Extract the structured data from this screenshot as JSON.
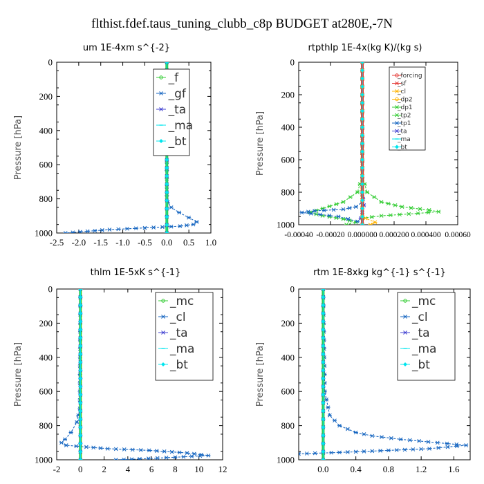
{
  "title": "flthist.fdef.taus_tuning_clubb_c8p  BUDGET at280E,-7N",
  "colors": {
    "green": "#33cc33",
    "blue": "#1565c0",
    "cyan": "#00e5ee",
    "red": "#e53935",
    "orange": "#ffb300",
    "purple": "#3f3fd0"
  },
  "chart_data": [
    {
      "type": "line",
      "title": "um  1E-4xm s^{-2}",
      "ylabel": "Pressure [hPa]",
      "ylim": [
        0,
        1000
      ],
      "xlim": [
        -2.5,
        1.0
      ],
      "xticks": [
        "-2.5",
        "-2.0",
        "-1.5",
        "-1.0",
        "-0.5",
        "0.0",
        "0.5",
        "1.0"
      ],
      "yticks": [
        "0",
        "200",
        "400",
        "600",
        "800",
        "1000"
      ],
      "legend": {
        "position": "top-right",
        "entries": [
          "_f",
          "_gf",
          "_ta",
          "_ma",
          "_bt"
        ]
      },
      "series": [
        {
          "name": "_f",
          "color": "#33cc33",
          "x": [
            0.0,
            0.0
          ],
          "y": [
            0,
            1000
          ]
        },
        {
          "name": "_gf",
          "color": "#1565c0",
          "x": [
            0.0,
            0.0,
            0.02,
            0.1,
            0.28,
            0.5,
            0.68,
            0.6,
            0.3,
            -0.5,
            -1.3,
            -1.8,
            -2.3
          ],
          "y": [
            0,
            780,
            820,
            850,
            880,
            910,
            935,
            950,
            960,
            970,
            980,
            990,
            1000
          ]
        },
        {
          "name": "_ta",
          "color": "#3f3fd0",
          "x": [
            0.0,
            0.0
          ],
          "y": [
            0,
            1000
          ]
        },
        {
          "name": "_ma",
          "color": "#00e5ee",
          "x": [
            0.0,
            0.0
          ],
          "y": [
            0,
            1000
          ]
        },
        {
          "name": "_bt",
          "color": "#00e5ee",
          "x": [
            0.0,
            0.0
          ],
          "y": [
            0,
            1000
          ]
        }
      ]
    },
    {
      "type": "line",
      "title": "rtpthlp  1E-4x(kg K)/(kg s)",
      "ylabel": "Pressure [hPa]",
      "ylim": [
        0,
        1000
      ],
      "xlim": [
        -0.0004,
        0.0006
      ],
      "xticks": [
        "-0.00040",
        "-0.00020",
        "0.000000",
        "0.000200",
        "0.000400",
        "0.00060"
      ],
      "yticks": [
        "0",
        "200",
        "400",
        "600",
        "800",
        "1000"
      ],
      "legend": {
        "position": "top-right",
        "entries": [
          "_forcing",
          "_sf",
          "_cl",
          "_dp2",
          "_dp1",
          "_tp2",
          "_tp1",
          "_ta",
          "_ma",
          "_bt"
        ]
      },
      "series": [
        {
          "name": "_forcing",
          "color": "#e53935",
          "x": [
            0.0,
            0.0
          ],
          "y": [
            0,
            1000
          ]
        },
        {
          "name": "_sf",
          "color": "#e53935",
          "x": [
            0.0,
            0.0
          ],
          "y": [
            0,
            1000
          ]
        },
        {
          "name": "_cl",
          "color": "#ffb300",
          "x": [
            0.0,
            0.0,
            2e-05,
            8e-05,
            5e-05
          ],
          "y": [
            0,
            930,
            960,
            985,
            1000
          ]
        },
        {
          "name": "_dp2",
          "color": "#ffb300",
          "x": [
            0.0,
            0.0
          ],
          "y": [
            0,
            1000
          ]
        },
        {
          "name": "_dp1",
          "color": "#33cc33",
          "x": [
            0.0,
            0.0,
            -3e-05,
            -0.00012,
            -0.00025,
            -0.00033,
            -0.00025,
            -0.00012,
            -4e-05,
            -0.0001
          ],
          "y": [
            0,
            700,
            800,
            860,
            900,
            925,
            945,
            965,
            985,
            1000
          ]
        },
        {
          "name": "_tp2",
          "color": "#33cc33",
          "x": [
            0.0,
            0.0,
            3e-05,
            0.00012,
            0.00025,
            0.00042,
            0.00048,
            0.00035,
            0.00012,
            0.0
          ],
          "y": [
            0,
            700,
            800,
            860,
            890,
            910,
            920,
            930,
            945,
            960
          ]
        },
        {
          "name": "_tp1",
          "color": "#1565c0",
          "x": [
            0.0,
            0.0,
            -4e-05,
            -0.00012,
            -0.0003,
            -0.00038,
            -0.00015,
            -3e-05
          ],
          "y": [
            0,
            860,
            890,
            905,
            915,
            925,
            950,
            980
          ]
        },
        {
          "name": "_ta",
          "color": "#3f3fd0",
          "x": [
            0.0,
            0.0,
            1e-05,
            0.0,
            -1e-05,
            0.0
          ],
          "y": [
            0,
            800,
            880,
            920,
            960,
            1000
          ]
        },
        {
          "name": "_ma",
          "color": "#00e5ee",
          "x": [
            0.0,
            0.0
          ],
          "y": [
            0,
            1000
          ]
        },
        {
          "name": "_bt",
          "color": "#00e5ee",
          "x": [
            0.0,
            0.0
          ],
          "y": [
            0,
            1000
          ]
        }
      ]
    },
    {
      "type": "line",
      "title": "thlm  1E-5xK s^{-1}",
      "ylabel": "Pressure [hPa]",
      "ylim": [
        0,
        1000
      ],
      "xlim": [
        -2,
        12
      ],
      "xticks": [
        "-2",
        "0",
        "2",
        "4",
        "6",
        "8",
        "10",
        "12"
      ],
      "yticks": [
        "0",
        "200",
        "400",
        "600",
        "800",
        "1000"
      ],
      "legend": {
        "position": "top-right",
        "entries": [
          "_mc",
          "_cl",
          "_ta",
          "_ma",
          "_bt"
        ]
      },
      "series": [
        {
          "name": "_mc",
          "color": "#33cc33",
          "x": [
            0.0,
            0.0
          ],
          "y": [
            0,
            1000
          ]
        },
        {
          "name": "_cl",
          "color": "#1565c0",
          "x": [
            0.0,
            -0.05,
            -0.3,
            -0.8,
            -1.3,
            -1.6,
            -1.2,
            0.5,
            2.3,
            5.8,
            9.0,
            10.8,
            8.0,
            5.0,
            3.0
          ],
          "y": [
            0,
            700,
            780,
            840,
            880,
            900,
            915,
            925,
            935,
            945,
            960,
            975,
            985,
            995,
            1000
          ]
        },
        {
          "name": "_ta",
          "color": "#3f3fd0",
          "x": [
            0.0,
            0.0
          ],
          "y": [
            0,
            1000
          ]
        },
        {
          "name": "_ma",
          "color": "#00e5ee",
          "x": [
            0.0,
            0.0
          ],
          "y": [
            0,
            1000
          ]
        },
        {
          "name": "_bt",
          "color": "#00e5ee",
          "x": [
            0.0,
            0.0
          ],
          "y": [
            0,
            1000
          ]
        }
      ]
    },
    {
      "type": "line",
      "title": "rtm  1E-8xkg kg^{-1} s^{-1}",
      "ylabel": "Pressure [hPa]",
      "ylim": [
        0,
        1000
      ],
      "xlim": [
        -0.3,
        1.8
      ],
      "xticks": [
        "0.0",
        "0.4",
        "0.8",
        "1.2",
        "1.6"
      ],
      "yticks": [
        "0",
        "200",
        "400",
        "600",
        "800",
        "1000"
      ],
      "legend": {
        "position": "top-right",
        "entries": [
          "_mc",
          "_cl",
          "_ta",
          "_ma",
          "_bt"
        ]
      },
      "series": [
        {
          "name": "_mc",
          "color": "#33cc33",
          "x": [
            0.0,
            0.0
          ],
          "y": [
            0,
            1000
          ]
        },
        {
          "name": "_cl",
          "color": "#1565c0",
          "x": [
            0.0,
            0.02,
            0.08,
            0.2,
            0.4,
            0.6,
            0.95,
            1.4,
            1.75,
            1.3,
            0.3,
            -0.3
          ],
          "y": [
            0,
            600,
            740,
            800,
            840,
            860,
            880,
            900,
            915,
            935,
            955,
            965
          ]
        },
        {
          "name": "_ta",
          "color": "#3f3fd0",
          "x": [
            0.0,
            0.0
          ],
          "y": [
            0,
            1000
          ]
        },
        {
          "name": "_ma",
          "color": "#00e5ee",
          "x": [
            0.0,
            0.0
          ],
          "y": [
            0,
            1000
          ]
        },
        {
          "name": "_bt",
          "color": "#00e5ee",
          "x": [
            0.0,
            0.0
          ],
          "y": [
            0,
            1000
          ]
        }
      ]
    }
  ]
}
